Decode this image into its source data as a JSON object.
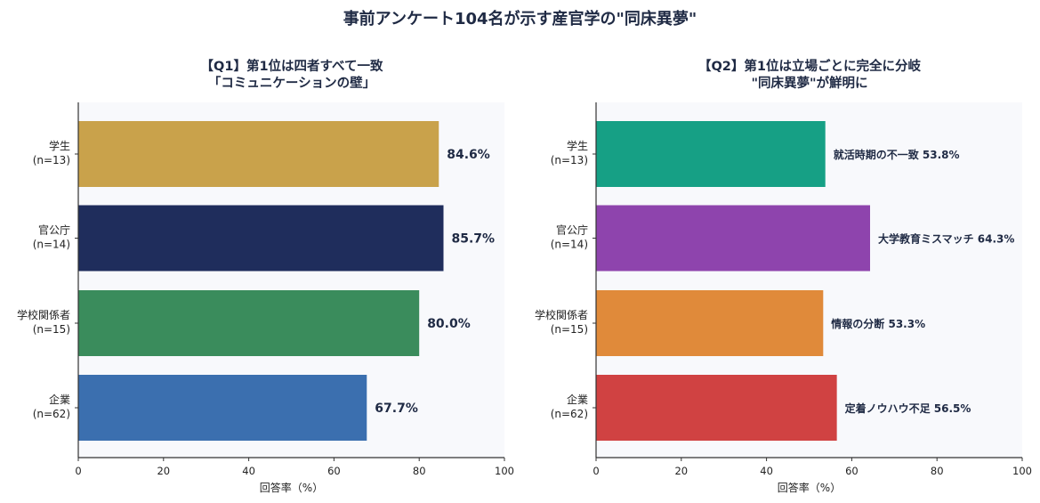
{
  "title": "事前アンケート104名が示す産官学の\"同床異夢\"",
  "chart_data": [
    {
      "type": "bar",
      "orientation": "horizontal",
      "title_lines": [
        "【Q1】第1位は四者すべて一致",
        "「コミュニケーションの壁」"
      ],
      "categories": [
        {
          "name": "学生",
          "n": "(n=13)"
        },
        {
          "name": "官公庁",
          "n": "(n=14)"
        },
        {
          "name": "学校関係者",
          "n": "(n=15)"
        },
        {
          "name": "企業",
          "n": "(n=62)"
        }
      ],
      "values": [
        84.6,
        85.7,
        80.0,
        67.7
      ],
      "value_labels": [
        "84.6%",
        "85.7%",
        "80.0%",
        "67.7%"
      ],
      "colors": [
        "#c9a24b",
        "#1f2d5c",
        "#3a8c5c",
        "#3b6faf"
      ],
      "xlabel": "回答率（%）",
      "xlim": [
        0,
        100
      ],
      "xticks": [
        0,
        20,
        40,
        60,
        80,
        100
      ],
      "grid": false
    },
    {
      "type": "bar",
      "orientation": "horizontal",
      "title_lines": [
        "【Q2】第1位は立場ごとに完全に分岐",
        "\"同床異夢\"が鮮明に"
      ],
      "categories": [
        {
          "name": "学生",
          "n": "(n=13)"
        },
        {
          "name": "官公庁",
          "n": "(n=14)"
        },
        {
          "name": "学校関係者",
          "n": "(n=15)"
        },
        {
          "name": "企業",
          "n": "(n=62)"
        }
      ],
      "values": [
        53.8,
        64.3,
        53.3,
        56.5
      ],
      "value_labels": [
        "就活時期の不一致  53.8%",
        "大学教育ミスマッチ  64.3%",
        "情報の分断  53.3%",
        "定着ノウハウ不足  56.5%"
      ],
      "colors": [
        "#16a085",
        "#8e44ad",
        "#e08a3a",
        "#d04242"
      ],
      "xlabel": "回答率（%）",
      "xlim": [
        0,
        100
      ],
      "xticks": [
        0,
        20,
        40,
        60,
        80,
        100
      ],
      "grid": false
    }
  ]
}
